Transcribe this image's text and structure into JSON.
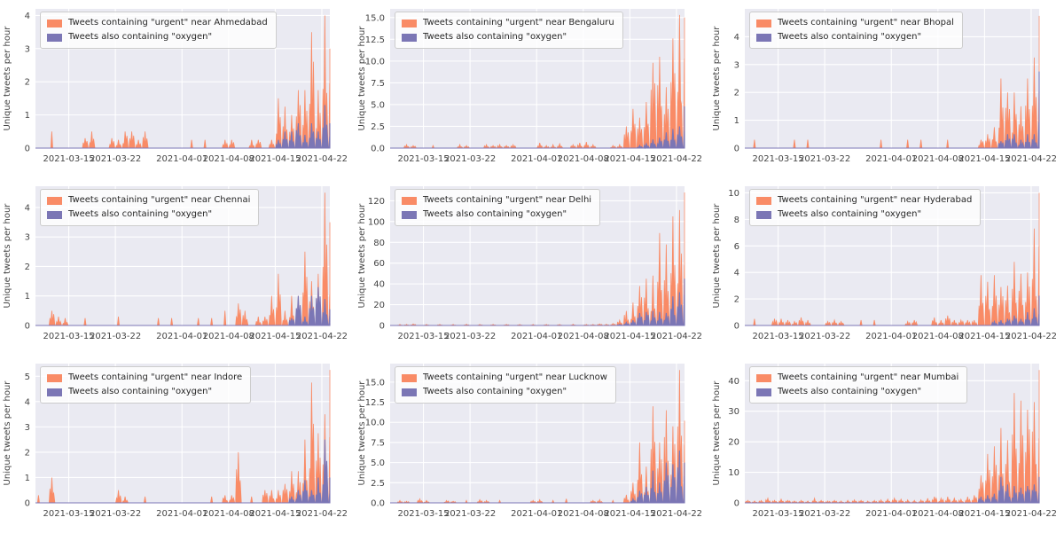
{
  "style": {
    "figure_bg": "#ffffff",
    "plot_bg": "#eaeaf2",
    "grid_color": "#ffffff",
    "urgent_color": "#f98b66",
    "oxygen_color": "#7b76b5",
    "tick_text_color": "#444444",
    "legend_text_color": "#262626",
    "legend_border": "#cccccc"
  },
  "ylabel": "Unique tweets per hour",
  "x_ticks": [
    {
      "label": "2021-03-15",
      "day": 5
    },
    {
      "label": "2021-03-22",
      "day": 12
    },
    {
      "label": "2021-04-01",
      "day": 22
    },
    {
      "label": "2021-04-08",
      "day": 29
    },
    {
      "label": "2021-04-15",
      "day": 36
    },
    {
      "label": "2021-04-22",
      "day": 43
    }
  ],
  "x_domain_days": [
    0,
    44.2
  ],
  "x_unit": "days since 2021-03-10 (hourly tweet-rate series)",
  "chart_data": [
    {
      "type": "area",
      "city": "Ahmedabad",
      "legend": [
        "Tweets containing \"urgent\" near Ahmedabad",
        "Tweets also containing \"oxygen\""
      ],
      "y_ticks": [
        {
          "label": "0",
          "value": 0
        },
        {
          "label": "1",
          "value": 1
        },
        {
          "label": "2",
          "value": 2
        },
        {
          "label": "3",
          "value": 3
        },
        {
          "label": "4",
          "value": 4
        }
      ],
      "ymax": 4.2,
      "series": [
        {
          "name": "urgent",
          "daily_peaks": {
            "2": 0.5,
            "7": 0.3,
            "8": 0.5,
            "11": 0.3,
            "12": 0.25,
            "13": 0.5,
            "14": 0.5,
            "15": 0.25,
            "16": 0.5,
            "23": 0.25,
            "25": 0.25,
            "28": 0.25,
            "29": 0.25,
            "32": 0.25,
            "33": 0.25,
            "35": 0.25,
            "36": 1.5,
            "37": 1.25,
            "38": 1.0,
            "39": 1.75,
            "40": 1.75,
            "41": 3.5,
            "42": 1.75,
            "43": 4.0,
            "44": 3.0
          }
        },
        {
          "name": "oxygen",
          "daily_peaks": {
            "36": 0.25,
            "37": 0.5,
            "38": 0.5,
            "39": 0.75,
            "40": 0.4,
            "41": 0.75,
            "42": 0.5,
            "43": 1.3,
            "44": 0.75
          }
        }
      ]
    },
    {
      "type": "area",
      "city": "Bengaluru",
      "legend": [
        "Tweets containing \"urgent\" near Bengaluru",
        "Tweets also containing \"oxygen\""
      ],
      "y_ticks": [
        {
          "label": "0.0",
          "value": 0
        },
        {
          "label": "2.5",
          "value": 2.5
        },
        {
          "label": "5.0",
          "value": 5
        },
        {
          "label": "7.5",
          "value": 7.5
        },
        {
          "label": "10.0",
          "value": 10
        },
        {
          "label": "12.5",
          "value": 12.5
        },
        {
          "label": "15.0",
          "value": 15
        }
      ],
      "ymax": 16.0,
      "series": [
        {
          "name": "urgent",
          "daily_peaks": {
            "2": 0.4,
            "3": 0.3,
            "6": 0.3,
            "10": 0.4,
            "11": 0.3,
            "14": 0.4,
            "15": 0.3,
            "16": 0.4,
            "17": 0.3,
            "18": 0.4,
            "22": 0.6,
            "23": 0.3,
            "24": 0.4,
            "25": 0.5,
            "27": 0.4,
            "28": 0.6,
            "29": 0.7,
            "30": 0.4,
            "33": 0.3,
            "34": 0.4,
            "35": 2.5,
            "36": 4.5,
            "37": 3.5,
            "38": 5.3,
            "39": 9.8,
            "40": 10.5,
            "41": 7.0,
            "42": 12.6,
            "43": 15.3,
            "44": 15.0
          }
        },
        {
          "name": "oxygen",
          "daily_peaks": {
            "37": 0.3,
            "38": 0.5,
            "39": 1.0,
            "40": 1.2,
            "41": 1.8,
            "42": 2.2,
            "43": 2.5,
            "44": 4.8
          }
        }
      ]
    },
    {
      "type": "area",
      "city": "Bhopal",
      "legend": [
        "Tweets containing \"urgent\" near Bhopal",
        "Tweets also containing \"oxygen\""
      ],
      "y_ticks": [
        {
          "label": "0",
          "value": 0
        },
        {
          "label": "1",
          "value": 1
        },
        {
          "label": "2",
          "value": 2
        },
        {
          "label": "3",
          "value": 3
        },
        {
          "label": "4",
          "value": 4
        }
      ],
      "ymax": 5.0,
      "series": [
        {
          "name": "urgent",
          "daily_peaks": {
            "1": 0.3,
            "7": 0.3,
            "9": 0.3,
            "20": 0.3,
            "24": 0.3,
            "26": 0.3,
            "30": 0.3,
            "35": 0.3,
            "36": 0.5,
            "37": 0.75,
            "38": 2.5,
            "39": 2.0,
            "40": 2.0,
            "41": 1.5,
            "42": 2.5,
            "43": 3.25,
            "44": 4.75
          }
        },
        {
          "name": "oxygen",
          "daily_peaks": {
            "38": 0.25,
            "39": 0.5,
            "40": 0.5,
            "41": 0.3,
            "42": 0.5,
            "43": 0.5,
            "44": 2.75
          }
        }
      ]
    },
    {
      "type": "area",
      "city": "Chennai",
      "legend": [
        "Tweets containing \"urgent\" near Chennai",
        "Tweets also containing \"oxygen\""
      ],
      "y_ticks": [
        {
          "label": "0",
          "value": 0
        },
        {
          "label": "1",
          "value": 1
        },
        {
          "label": "2",
          "value": 2
        },
        {
          "label": "3",
          "value": 3
        },
        {
          "label": "4",
          "value": 4
        }
      ],
      "ymax": 4.72,
      "series": [
        {
          "name": "urgent",
          "daily_peaks": {
            "2": 0.5,
            "3": 0.3,
            "4": 0.25,
            "7": 0.25,
            "12": 0.3,
            "18": 0.25,
            "20": 0.25,
            "24": 0.25,
            "26": 0.25,
            "28": 0.5,
            "30": 0.75,
            "31": 0.5,
            "33": 0.3,
            "34": 0.3,
            "35": 1.0,
            "36": 1.75,
            "37": 0.5,
            "38": 1.0,
            "39": 1.0,
            "40": 2.5,
            "41": 1.5,
            "42": 1.75,
            "43": 4.5,
            "44": 3.5
          }
        },
        {
          "name": "oxygen",
          "daily_peaks": {
            "38": 0.25,
            "39": 1.0,
            "40": 0.3,
            "41": 1.0,
            "42": 1.3,
            "43": 0.9,
            "44": 0.55
          }
        }
      ]
    },
    {
      "type": "area",
      "city": "Delhi",
      "legend": [
        "Tweets containing \"urgent\" near Delhi",
        "Tweets also containing \"oxygen\""
      ],
      "y_ticks": [
        {
          "label": "0",
          "value": 0
        },
        {
          "label": "20",
          "value": 20
        },
        {
          "label": "40",
          "value": 40
        },
        {
          "label": "60",
          "value": 60
        },
        {
          "label": "80",
          "value": 80
        },
        {
          "label": "100",
          "value": 100
        },
        {
          "label": "120",
          "value": 120
        }
      ],
      "ymax": 134,
      "series": [
        {
          "name": "urgent",
          "daily_peaks": {
            "1": 1,
            "2": 1,
            "3": 1.5,
            "5": 1,
            "7": 1,
            "9": 1,
            "11": 1.2,
            "13": 1,
            "15": 1,
            "17": 1,
            "19": 1,
            "21": 1,
            "23": 1,
            "25": 1,
            "27": 1.2,
            "29": 1,
            "30": 1,
            "31": 1.5,
            "32": 1.2,
            "33": 2,
            "34": 5,
            "35": 14,
            "36": 22,
            "37": 38,
            "38": 45,
            "39": 48,
            "40": 89,
            "41": 78,
            "42": 105,
            "43": 111,
            "44": 128
          }
        },
        {
          "name": "oxygen",
          "daily_peaks": {
            "34": 1,
            "35": 3,
            "36": 5,
            "37": 12,
            "38": 13,
            "39": 14,
            "40": 13,
            "41": 12,
            "42": 28,
            "43": 32,
            "44": 45
          }
        }
      ]
    },
    {
      "type": "area",
      "city": "Hyderabad",
      "legend": [
        "Tweets containing \"urgent\" near Hyderabad",
        "Tweets also containing \"oxygen\""
      ],
      "y_ticks": [
        {
          "label": "0",
          "value": 0
        },
        {
          "label": "2",
          "value": 2
        },
        {
          "label": "4",
          "value": 4
        },
        {
          "label": "6",
          "value": 6
        },
        {
          "label": "8",
          "value": 8
        },
        {
          "label": "10",
          "value": 10
        }
      ],
      "ymax": 10.5,
      "series": [
        {
          "name": "urgent",
          "daily_peaks": {
            "1": 0.5,
            "4": 0.5,
            "5": 0.5,
            "6": 0.4,
            "7": 0.3,
            "8": 0.6,
            "9": 0.4,
            "12": 0.3,
            "13": 0.4,
            "14": 0.3,
            "17": 0.4,
            "19": 0.4,
            "24": 0.3,
            "25": 0.4,
            "28": 0.6,
            "29": 0.4,
            "30": 0.75,
            "31": 0.4,
            "32": 0.4,
            "33": 0.4,
            "34": 0.4,
            "35": 3.8,
            "36": 3.3,
            "37": 3.8,
            "38": 2.9,
            "39": 3.0,
            "40": 4.8,
            "41": 3.9,
            "42": 4.0,
            "43": 7.3,
            "44": 10.0
          }
        },
        {
          "name": "oxygen",
          "daily_peaks": {
            "37": 0.3,
            "38": 0.4,
            "39": 0.5,
            "40": 0.75,
            "41": 0.5,
            "42": 1.0,
            "43": 1.3,
            "44": 2.25
          }
        }
      ]
    },
    {
      "type": "area",
      "city": "Indore",
      "legend": [
        "Tweets containing \"urgent\" near Indore",
        "Tweets also containing \"oxygen\""
      ],
      "y_ticks": [
        {
          "label": "0",
          "value": 0
        },
        {
          "label": "1",
          "value": 1
        },
        {
          "label": "2",
          "value": 2
        },
        {
          "label": "3",
          "value": 3
        },
        {
          "label": "4",
          "value": 4
        },
        {
          "label": "5",
          "value": 5
        }
      ],
      "ymax": 5.5,
      "series": [
        {
          "name": "urgent",
          "daily_peaks": {
            "0": 0.3,
            "2": 1.0,
            "12": 0.5,
            "13": 0.25,
            "16": 0.25,
            "26": 0.25,
            "28": 0.3,
            "29": 0.3,
            "30": 2.0,
            "32": 0.25,
            "34": 0.5,
            "35": 0.5,
            "36": 0.5,
            "37": 0.75,
            "38": 1.25,
            "39": 1.25,
            "40": 2.5,
            "41": 4.75,
            "42": 2.75,
            "43": 3.5,
            "44": 5.25
          }
        },
        {
          "name": "oxygen",
          "daily_peaks": {
            "38": 0.25,
            "39": 0.5,
            "40": 0.9,
            "41": 0.5,
            "42": 1.0,
            "43": 2.5,
            "44": 1.0
          }
        }
      ]
    },
    {
      "type": "area",
      "city": "Lucknow",
      "legend": [
        "Tweets containing \"urgent\" near Lucknow",
        "Tweets also containing \"oxygen\""
      ],
      "y_ticks": [
        {
          "label": "0.0",
          "value": 0
        },
        {
          "label": "2.5",
          "value": 2.5
        },
        {
          "label": "5.0",
          "value": 5
        },
        {
          "label": "7.5",
          "value": 7.5
        },
        {
          "label": "10.0",
          "value": 10
        },
        {
          "label": "12.5",
          "value": 12.5
        },
        {
          "label": "15.0",
          "value": 15
        }
      ],
      "ymax": 17.3,
      "series": [
        {
          "name": "urgent",
          "daily_peaks": {
            "1": 0.3,
            "2": 0.2,
            "4": 0.5,
            "5": 0.3,
            "8": 0.3,
            "9": 0.2,
            "11": 0.3,
            "13": 0.4,
            "14": 0.3,
            "16": 0.3,
            "21": 0.3,
            "22": 0.4,
            "24": 0.3,
            "26": 0.5,
            "30": 0.3,
            "31": 0.4,
            "33": 0.3,
            "35": 1.0,
            "36": 2.5,
            "37": 7.5,
            "38": 4.5,
            "39": 12.0,
            "40": 7.5,
            "41": 11.5,
            "42": 9.5,
            "43": 16.5,
            "44": 10.2
          }
        },
        {
          "name": "oxygen",
          "daily_peaks": {
            "36": 0.5,
            "37": 1.5,
            "38": 2.0,
            "39": 4.0,
            "40": 2.5,
            "41": 5.0,
            "42": 4.8,
            "43": 6.5,
            "44": 5.0
          }
        }
      ]
    },
    {
      "type": "area",
      "city": "Mumbai",
      "legend": [
        "Tweets containing \"urgent\" near Mumbai",
        "Tweets also containing \"oxygen\""
      ],
      "y_ticks": [
        {
          "label": "0",
          "value": 0
        },
        {
          "label": "10",
          "value": 10
        },
        {
          "label": "20",
          "value": 20
        },
        {
          "label": "30",
          "value": 30
        },
        {
          "label": "40",
          "value": 40
        }
      ],
      "ymax": 45.6,
      "series": [
        {
          "name": "urgent",
          "daily_peaks": {
            "0": 0.8,
            "1": 0.6,
            "2": 0.8,
            "3": 1.5,
            "4": 0.8,
            "5": 1.2,
            "6": 0.8,
            "7": 0.6,
            "8": 0.8,
            "9": 0.6,
            "10": 1.5,
            "11": 0.8,
            "12": 0.6,
            "13": 0.8,
            "14": 0.6,
            "15": 0.8,
            "16": 1.0,
            "17": 0.8,
            "18": 0.6,
            "19": 0.8,
            "20": 1.0,
            "21": 1.2,
            "22": 1.5,
            "23": 1.2,
            "24": 1.0,
            "25": 0.8,
            "26": 1.0,
            "27": 1.5,
            "28": 2.0,
            "29": 1.5,
            "30": 2.0,
            "31": 1.5,
            "32": 1.2,
            "33": 2.0,
            "34": 2.5,
            "35": 9.0,
            "36": 16.0,
            "37": 18.5,
            "38": 24.5,
            "39": 20.5,
            "40": 36.0,
            "41": 33.5,
            "42": 30.5,
            "43": 33.0,
            "44": 43.5
          }
        },
        {
          "name": "oxygen",
          "daily_peaks": {
            "35": 2.0,
            "36": 2.5,
            "37": 3.0,
            "38": 8.5,
            "39": 6.0,
            "40": 5.5,
            "41": 5.0,
            "42": 5.5,
            "43": 6.0,
            "44": 8.5
          }
        }
      ]
    }
  ]
}
